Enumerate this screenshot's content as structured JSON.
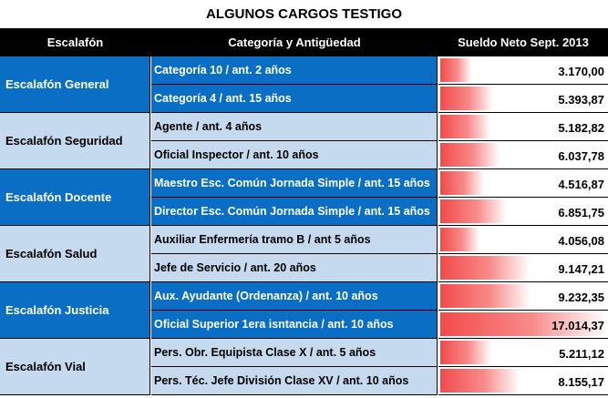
{
  "title": "ALGUNOS CARGOS TESTIGO",
  "headers": {
    "escalafon": "Escalafón",
    "categoria": "Categoría y Antigüedad",
    "sueldo": "Sueldo Neto Sept. 2013"
  },
  "colors": {
    "dark_band": "#0a6fc4",
    "light_band": "#c5d9ef",
    "header": "#000000",
    "bar": "#f24a4a"
  },
  "max_salary": 17014.37,
  "groups": [
    {
      "name": "Escalafón General",
      "theme": "dark",
      "rows": [
        {
          "categoria": "Categoría 10 / ant. 2 años",
          "sueldo": "3.170,00",
          "value": 3170.0
        },
        {
          "categoria": "Categoría 4 / ant. 15 años",
          "sueldo": "5.393,87",
          "value": 5393.87
        }
      ]
    },
    {
      "name": "Escalafón Seguridad",
      "theme": "light",
      "rows": [
        {
          "categoria": "Agente / ant. 4 años",
          "sueldo": "5.182,82",
          "value": 5182.82
        },
        {
          "categoria": "Oficial Inspector / ant. 10 años",
          "sueldo": "6.037,78",
          "value": 6037.78
        }
      ]
    },
    {
      "name": "Escalafón Docente",
      "theme": "dark",
      "rows": [
        {
          "categoria": "Maestro Esc. Común Jornada Simple / ant. 15 años",
          "sueldo": "4.516,87",
          "value": 4516.87
        },
        {
          "categoria": "Director Esc. Común Jornada Simple / ant. 15 años",
          "sueldo": "6.851,75",
          "value": 6851.75
        }
      ]
    },
    {
      "name": "Escalafón Salud",
      "theme": "light",
      "rows": [
        {
          "categoria": "Auxiliar Enfermería tramo B / ant 5 años",
          "sueldo": "4.056,08",
          "value": 4056.08
        },
        {
          "categoria": "Jefe de Servicio / ant. 20 años",
          "sueldo": "9.147,21",
          "value": 9147.21
        }
      ]
    },
    {
      "name": "Escalafón Justicia",
      "theme": "dark",
      "rows": [
        {
          "categoria": "Aux. Ayudante (Ordenanza) / ant. 10 años",
          "sueldo": "9.232,35",
          "value": 9232.35
        },
        {
          "categoria": "Oficial Superior 1era isntancia / ant. 10 años",
          "sueldo": "17.014,37",
          "value": 17014.37
        }
      ]
    },
    {
      "name": "Escalafón Vial",
      "theme": "light",
      "rows": [
        {
          "categoria": "Pers. Obr. Equipista Clase X / ant. 5 años",
          "sueldo": "5.211,12",
          "value": 5211.12
        },
        {
          "categoria": "Pers. Téc. Jefe División Clase XV / ant. 10 años",
          "sueldo": "8.155,17",
          "value": 8155.17
        }
      ]
    }
  ]
}
